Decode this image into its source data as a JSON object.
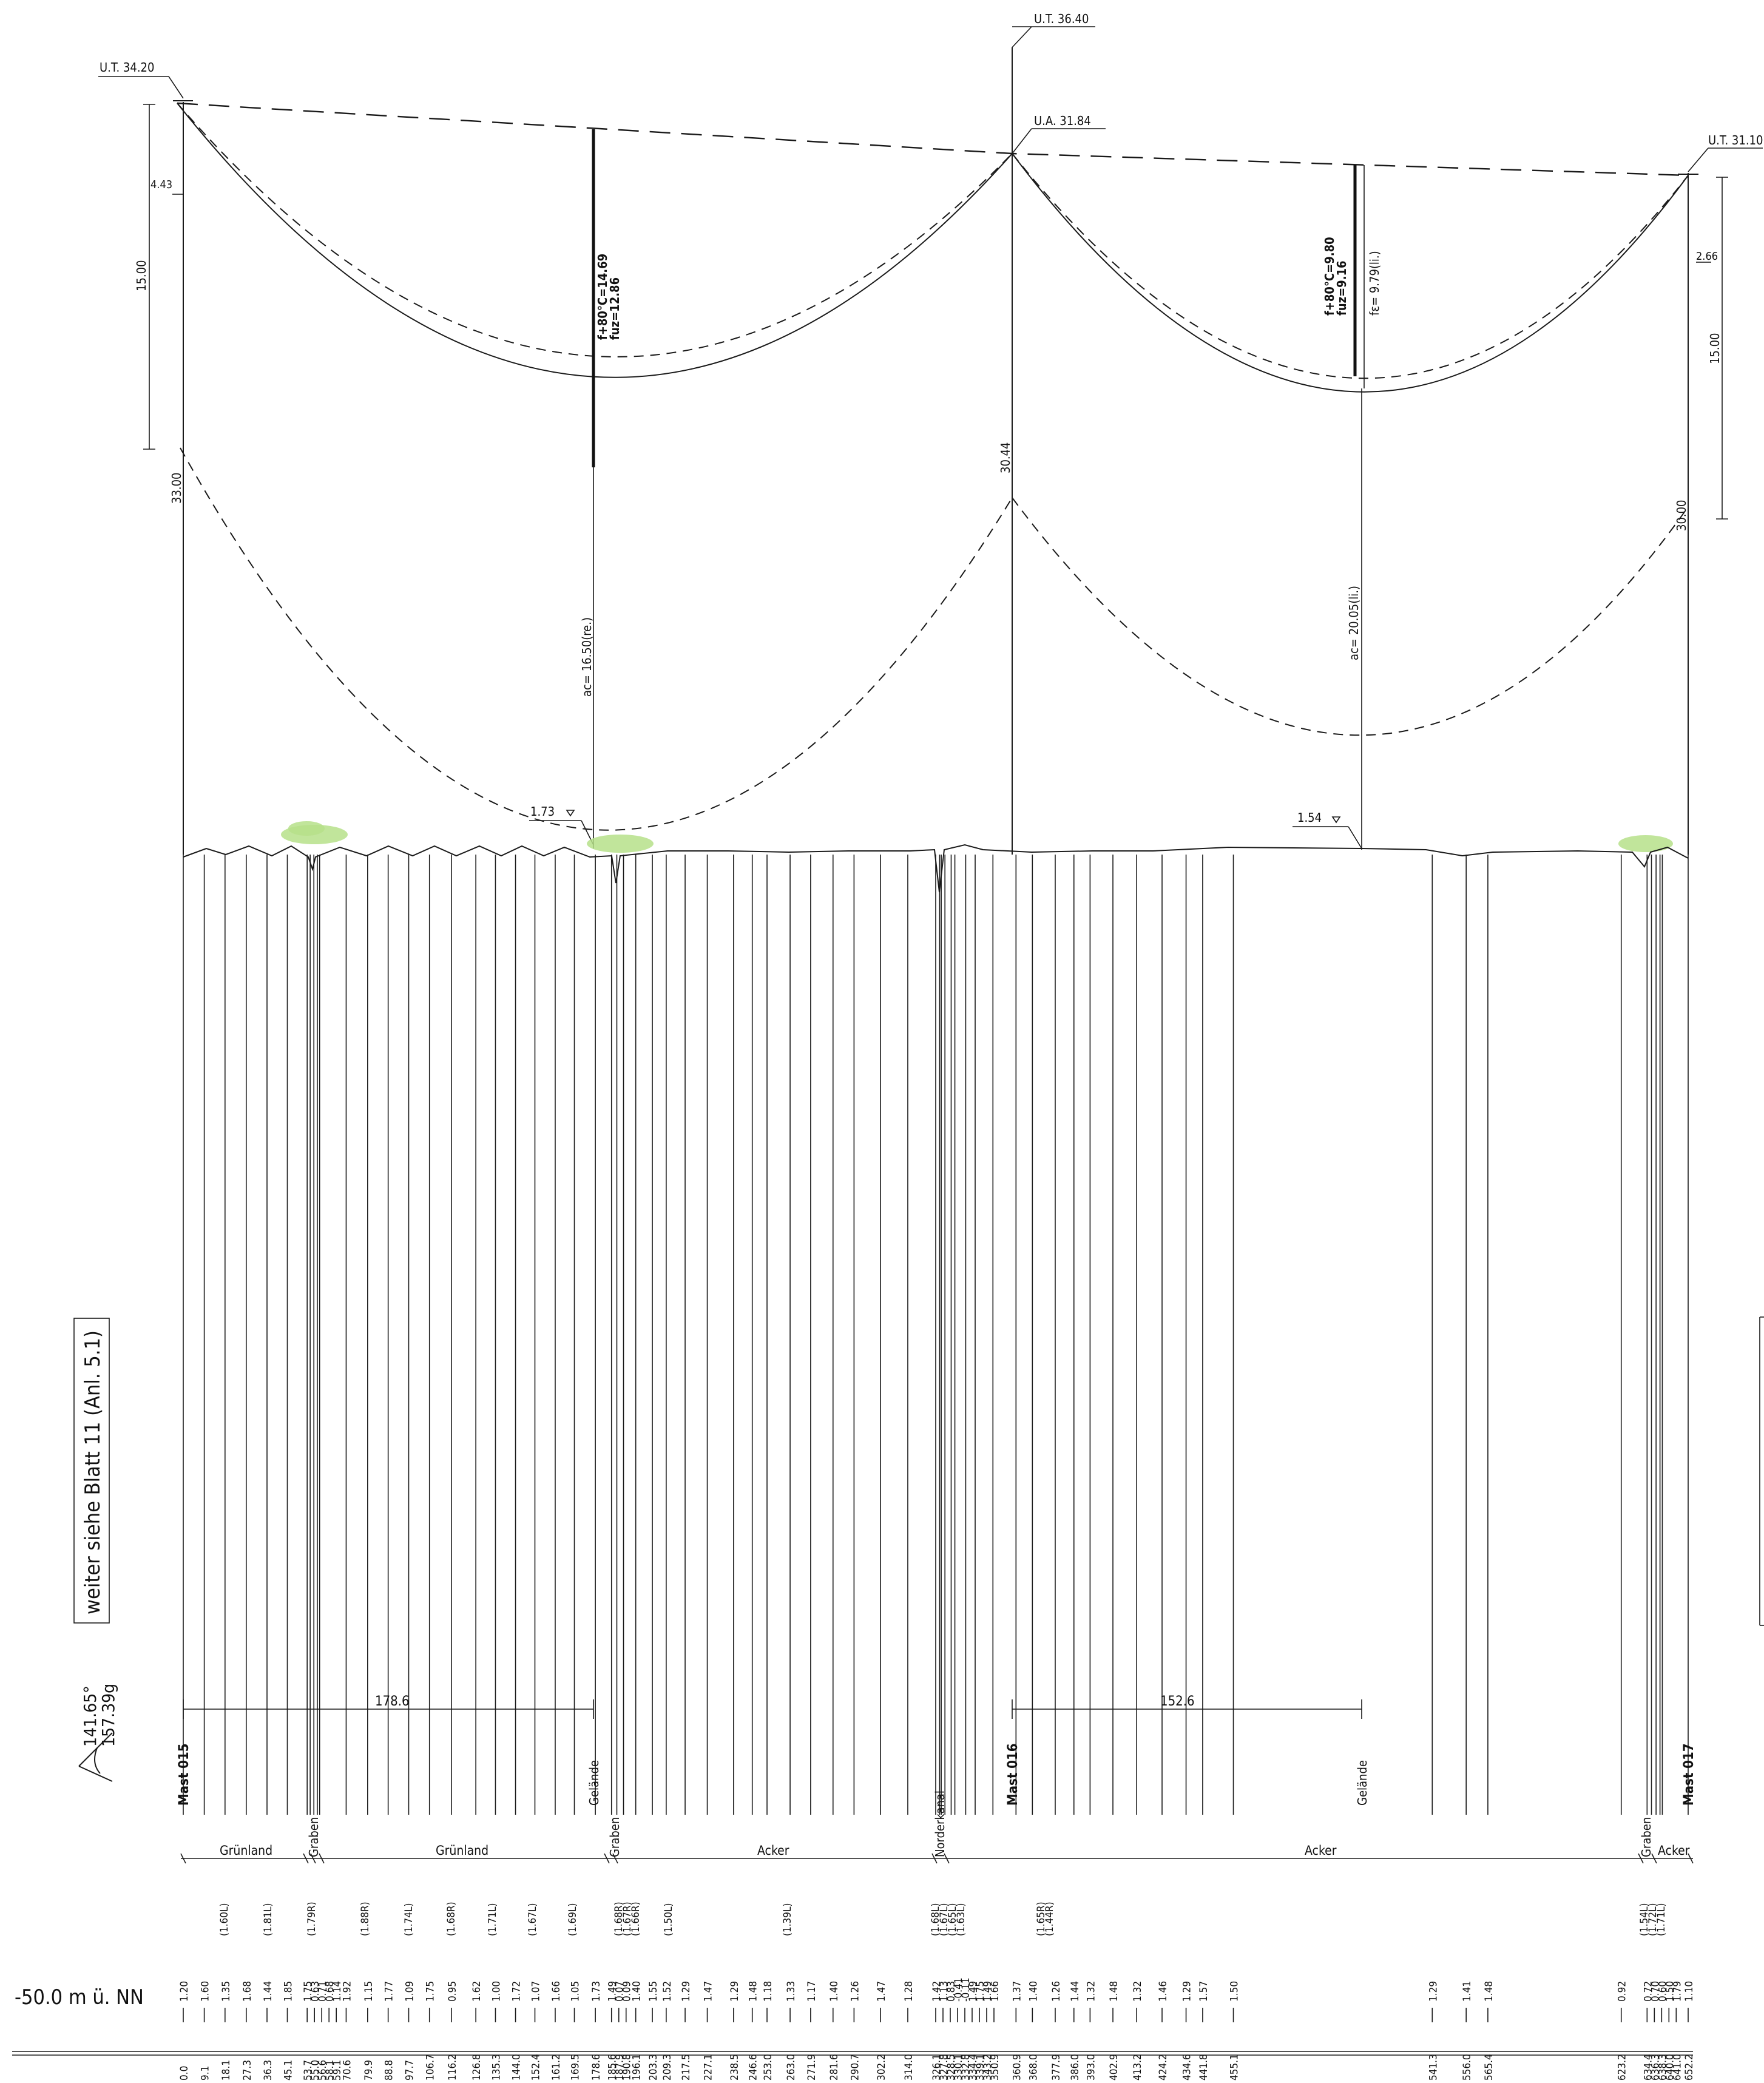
{
  "towers": {
    "t015": {
      "name": "Mast 015",
      "top_label": "U.T. 34.20",
      "height": "33.00"
    },
    "t016": {
      "name": "Mast 016",
      "top_label": "U.T. 36.40",
      "arm_label": "U.A. 31.84",
      "height": "30.44"
    },
    "t017": {
      "name": "Mast 017",
      "top_label": "U.T. 31.10",
      "height": "30.00"
    }
  },
  "dimensions": {
    "d_443": "4.43",
    "d_1500_left": "15.00",
    "d_1500_right": "15.00",
    "d_266": "2.66",
    "sag1_line1": "f+80°C=14.69",
    "sag1_line2": "fuz=12.86",
    "sag2_line1": "f+80°C=9.80",
    "sag2_line2": "fuz=9.16",
    "fe2": "fε= 9.79(li.)",
    "ac1": "ac= 16.50(re.)",
    "ac2": "ac= 20.05(li.)",
    "clear1": "1.73",
    "clear2": "1.54",
    "span1": "178.6",
    "span2": "152.6",
    "gelaende1": "Gelände",
    "gelaende2": "Gelände"
  },
  "side": {
    "continue_note": "weiter siehe Blatt 11 (Anl. 5.1)",
    "angle1": "141.65°",
    "angle2": "157.39g",
    "datum": "-50.0 m ü. NN"
  },
  "crossings": {
    "graben1": "Graben",
    "graben2": "Graben",
    "norderkanal": "Norderkanal",
    "graben3": "Graben"
  },
  "landuse": [
    "Grünland",
    "Grünland",
    "Acker",
    "Acker",
    "Acker"
  ],
  "side_distances": [
    "(1.60L)",
    "(1.81L)",
    "(1.79R)",
    "(1.88R)",
    "(1.74L)",
    "(1.68R)",
    "(1.71L)",
    "(1.67L)",
    "(1.69L)",
    "(1.68R)",
    "(1.67R)",
    "(1.66R)",
    "(1.50L)",
    "(1.39L)",
    "(1.68L)",
    "(1.67L)",
    "(1.65L)",
    "(1.63L)",
    "(1.65R)",
    "(1.44R)",
    "(1.54L)",
    "(1.72L)",
    "(1.71L)"
  ],
  "station_rows": [
    {
      "h": "1.20",
      "s": "0.0"
    },
    {
      "h": "1.60",
      "s": "9.1"
    },
    {
      "h": "1.35",
      "s": "18.1"
    },
    {
      "h": "1.68",
      "s": "27.3"
    },
    {
      "h": "1.44",
      "s": "36.3"
    },
    {
      "h": "1.85",
      "s": "45.1"
    },
    {
      "h": "1.75",
      "s": "53.7"
    },
    {
      "h": "0.63",
      "s": "55.0"
    },
    {
      "h": "0.71",
      "s": "56.6"
    },
    {
      "h": "0.68",
      "s": "58.1"
    },
    {
      "h": "1.14",
      "s": "59.1"
    },
    {
      "h": "1.92",
      "s": "70.6"
    },
    {
      "h": "1.15",
      "s": "79.9"
    },
    {
      "h": "1.77",
      "s": "88.8"
    },
    {
      "h": "1.09",
      "s": "97.7"
    },
    {
      "h": "1.75",
      "s": "106.7"
    },
    {
      "h": "0.95",
      "s": "116.2"
    },
    {
      "h": "1.62",
      "s": "126.8"
    },
    {
      "h": "1.00",
      "s": "135.3"
    },
    {
      "h": "1.72",
      "s": "144.0"
    },
    {
      "h": "1.07",
      "s": "152.4"
    },
    {
      "h": "1.66",
      "s": "161.2"
    },
    {
      "h": "1.05",
      "s": "169.5"
    },
    {
      "h": "1.73",
      "s": "178.6"
    },
    {
      "h": "1.49",
      "s": "185.6"
    },
    {
      "h": "0.07",
      "s": "187.9"
    },
    {
      "h": "0.09",
      "s": "190.8"
    },
    {
      "h": "1.40",
      "s": "196.1"
    },
    {
      "h": "1.55",
      "s": "203.3"
    },
    {
      "h": "1.52",
      "s": "209.3"
    },
    {
      "h": "1.29",
      "s": "217.5"
    },
    {
      "h": "1.47",
      "s": "227.1"
    },
    {
      "h": "1.29",
      "s": "238.5"
    },
    {
      "h": "1.48",
      "s": "246.6"
    },
    {
      "h": "1.18",
      "s": "253.0"
    },
    {
      "h": "1.33",
      "s": "263.0"
    },
    {
      "h": "1.17",
      "s": "271.9"
    },
    {
      "h": "1.40",
      "s": "281.6"
    },
    {
      "h": "1.26",
      "s": "290.7"
    },
    {
      "h": "1.47",
      "s": "302.2"
    },
    {
      "h": "1.28",
      "s": "314.0"
    },
    {
      "h": "1.42",
      "s": "326.1"
    },
    {
      "h": "1.13",
      "s": "327.8"
    },
    {
      "h": "0.83",
      "s": "328.5"
    },
    {
      "h": "-0.41",
      "s": "330.1"
    },
    {
      "h": "-0.11",
      "s": "332.8"
    },
    {
      "h": "1.49",
      "s": "334.4"
    },
    {
      "h": "1.75",
      "s": "339.1"
    },
    {
      "h": "1.49",
      "s": "343.2"
    },
    {
      "h": "1.66",
      "s": "350.9"
    },
    {
      "h": "1.37",
      "s": "360.9"
    },
    {
      "h": "1.40",
      "s": "368.0"
    },
    {
      "h": "1.26",
      "s": "377.9"
    },
    {
      "h": "1.44",
      "s": "386.0"
    },
    {
      "h": "1.32",
      "s": "393.0"
    },
    {
      "h": "1.48",
      "s": "402.9"
    },
    {
      "h": "1.32",
      "s": "413.2"
    },
    {
      "h": "1.46",
      "s": "424.2"
    },
    {
      "h": "1.29",
      "s": "434.6"
    },
    {
      "h": "1.57",
      "s": "441.8"
    },
    {
      "h": "1.50",
      "s": "455.1"
    },
    {
      "h": "1.29",
      "s": "541.3"
    },
    {
      "h": "1.41",
      "s": "556.0"
    },
    {
      "h": "1.48",
      "s": "565.4"
    },
    {
      "h": "0.92",
      "s": "623.2"
    },
    {
      "h": "0.72",
      "s": "634.4"
    },
    {
      "h": "0.70",
      "s": "636.3"
    },
    {
      "h": "0.60",
      "s": "638.3"
    },
    {
      "h": "1.50",
      "s": "640.0"
    },
    {
      "h": "1.79",
      "s": "641.0"
    },
    {
      "h": "1.10",
      "s": "652.2"
    }
  ]
}
